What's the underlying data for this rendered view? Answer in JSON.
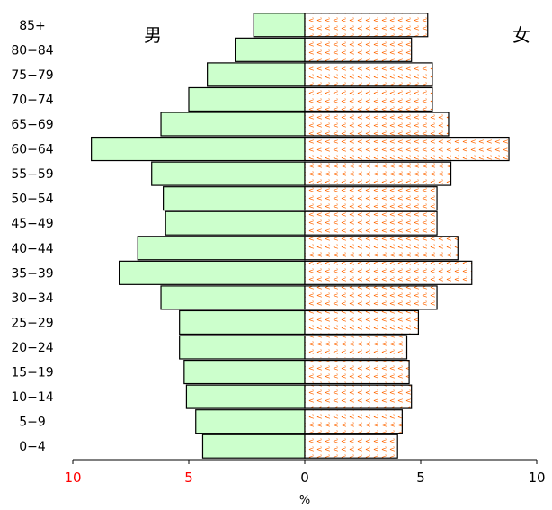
{
  "chart_data": {
    "type": "bar",
    "orientation": "horizontal",
    "layout": "population-pyramid",
    "categories": [
      "0-4",
      "5-9",
      "10-14",
      "15-19",
      "20-24",
      "25-29",
      "30-34",
      "35-39",
      "40-44",
      "45-49",
      "50-54",
      "55-59",
      "60-64",
      "65-69",
      "70-74",
      "75-79",
      "80-84",
      "85+"
    ],
    "series": [
      {
        "name": "男",
        "side": "left",
        "color": "#ccffcc",
        "values": [
          4.4,
          4.7,
          5.1,
          5.2,
          5.4,
          5.4,
          6.2,
          8.0,
          7.2,
          6.0,
          6.1,
          6.6,
          9.2,
          6.2,
          5.0,
          4.2,
          3.0,
          2.2
        ]
      },
      {
        "name": "女",
        "side": "right",
        "color": "#ffffff",
        "pattern_color": "#ff6600",
        "values": [
          4.0,
          4.2,
          4.6,
          4.5,
          4.4,
          4.9,
          5.7,
          7.2,
          6.6,
          5.7,
          5.7,
          6.3,
          8.8,
          6.2,
          5.5,
          5.5,
          4.6,
          5.3
        ]
      }
    ],
    "xlim": [
      -10,
      10
    ],
    "xticks": [
      -10,
      -5,
      0,
      5,
      10
    ],
    "xtick_labels": [
      "10",
      "5",
      "0",
      "5",
      "10"
    ],
    "xtick_label_colors": [
      "#ff0000",
      "#ff0000",
      "#000000",
      "#000000",
      "#000000"
    ],
    "xlabel": "%",
    "ylabel": "",
    "title": "",
    "grid": false,
    "legend": "none",
    "side_labels": {
      "left": "男",
      "right": "女"
    }
  }
}
